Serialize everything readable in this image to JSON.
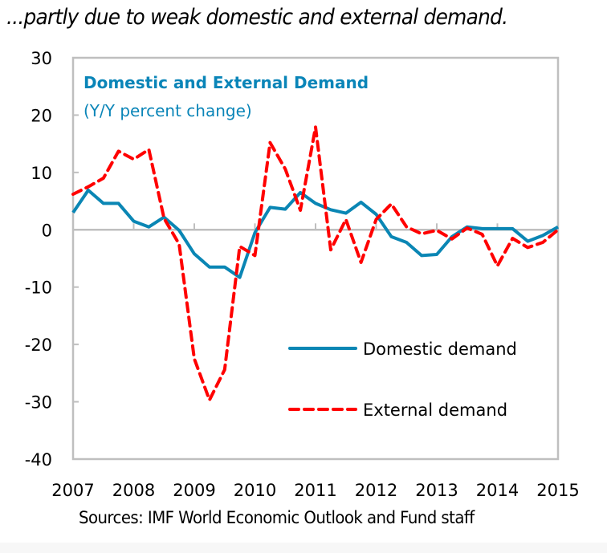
{
  "headline": "...partly due to weak domestic and external demand.",
  "source": "Sources: IMF World Economic Outlook and Fund staff",
  "colors": {
    "domestic": "#0a86b4",
    "external": "#ff0000",
    "title": "#0a85b8",
    "axis": "#bfbfbf"
  },
  "chart_data": {
    "type": "line",
    "title": "Domestic and External Demand",
    "subtitle": "(Y/Y percent change)",
    "xlabel": "",
    "ylabel": "",
    "xlim": [
      2007,
      2015
    ],
    "ylim": [
      -40,
      30
    ],
    "yticks": [
      30,
      20,
      10,
      0,
      -10,
      -20,
      -30,
      -40
    ],
    "ytick_labels": [
      "30",
      "20",
      "10",
      "0",
      "-10",
      "-20",
      "-30",
      "-40"
    ],
    "xticks": [
      2007,
      2008,
      2009,
      2010,
      2011,
      2012,
      2013,
      2014,
      2015
    ],
    "xtick_labels": [
      "2007",
      "2008",
      "2009",
      "2010",
      "2011",
      "2012",
      "2013",
      "2014",
      "2015"
    ],
    "grid": false,
    "legend_position": "bottom-right",
    "x": [
      2007.0,
      2007.25,
      2007.5,
      2007.75,
      2008.0,
      2008.25,
      2008.5,
      2008.75,
      2009.0,
      2009.25,
      2009.5,
      2009.75,
      2010.0,
      2010.25,
      2010.5,
      2010.75,
      2011.0,
      2011.25,
      2011.5,
      2011.75,
      2012.0,
      2012.25,
      2012.5,
      2012.75,
      2013.0,
      2013.25,
      2013.5,
      2013.75,
      2014.0,
      2014.25,
      2014.5,
      2014.75,
      2015.0
    ],
    "series": [
      {
        "name": "Domestic demand",
        "style": "solid",
        "values": [
          3.0,
          6.9,
          4.6,
          4.6,
          1.5,
          0.5,
          2.2,
          -0.1,
          -4.2,
          -6.5,
          -6.5,
          -8.3,
          -0.5,
          3.9,
          3.6,
          6.5,
          4.6,
          3.5,
          2.9,
          4.8,
          2.7,
          -1.2,
          -2.2,
          -4.5,
          -4.3,
          -1.2,
          0.5,
          0.2,
          0.2,
          0.2,
          -2.0,
          -1.0,
          0.5
        ]
      },
      {
        "name": "External demand",
        "style": "dashed",
        "values": [
          6.2,
          7.5,
          9.0,
          13.7,
          12.3,
          14.0,
          2.0,
          -2.5,
          -22.5,
          -29.7,
          -24.4,
          -2.9,
          -4.5,
          15.2,
          10.6,
          3.4,
          17.9,
          -3.5,
          1.8,
          -5.7,
          1.8,
          4.5,
          0.5,
          -0.7,
          -0.1,
          -1.6,
          0.3,
          -0.8,
          -6.3,
          -1.5,
          -3.1,
          -2.2,
          0.0
        ]
      }
    ]
  }
}
